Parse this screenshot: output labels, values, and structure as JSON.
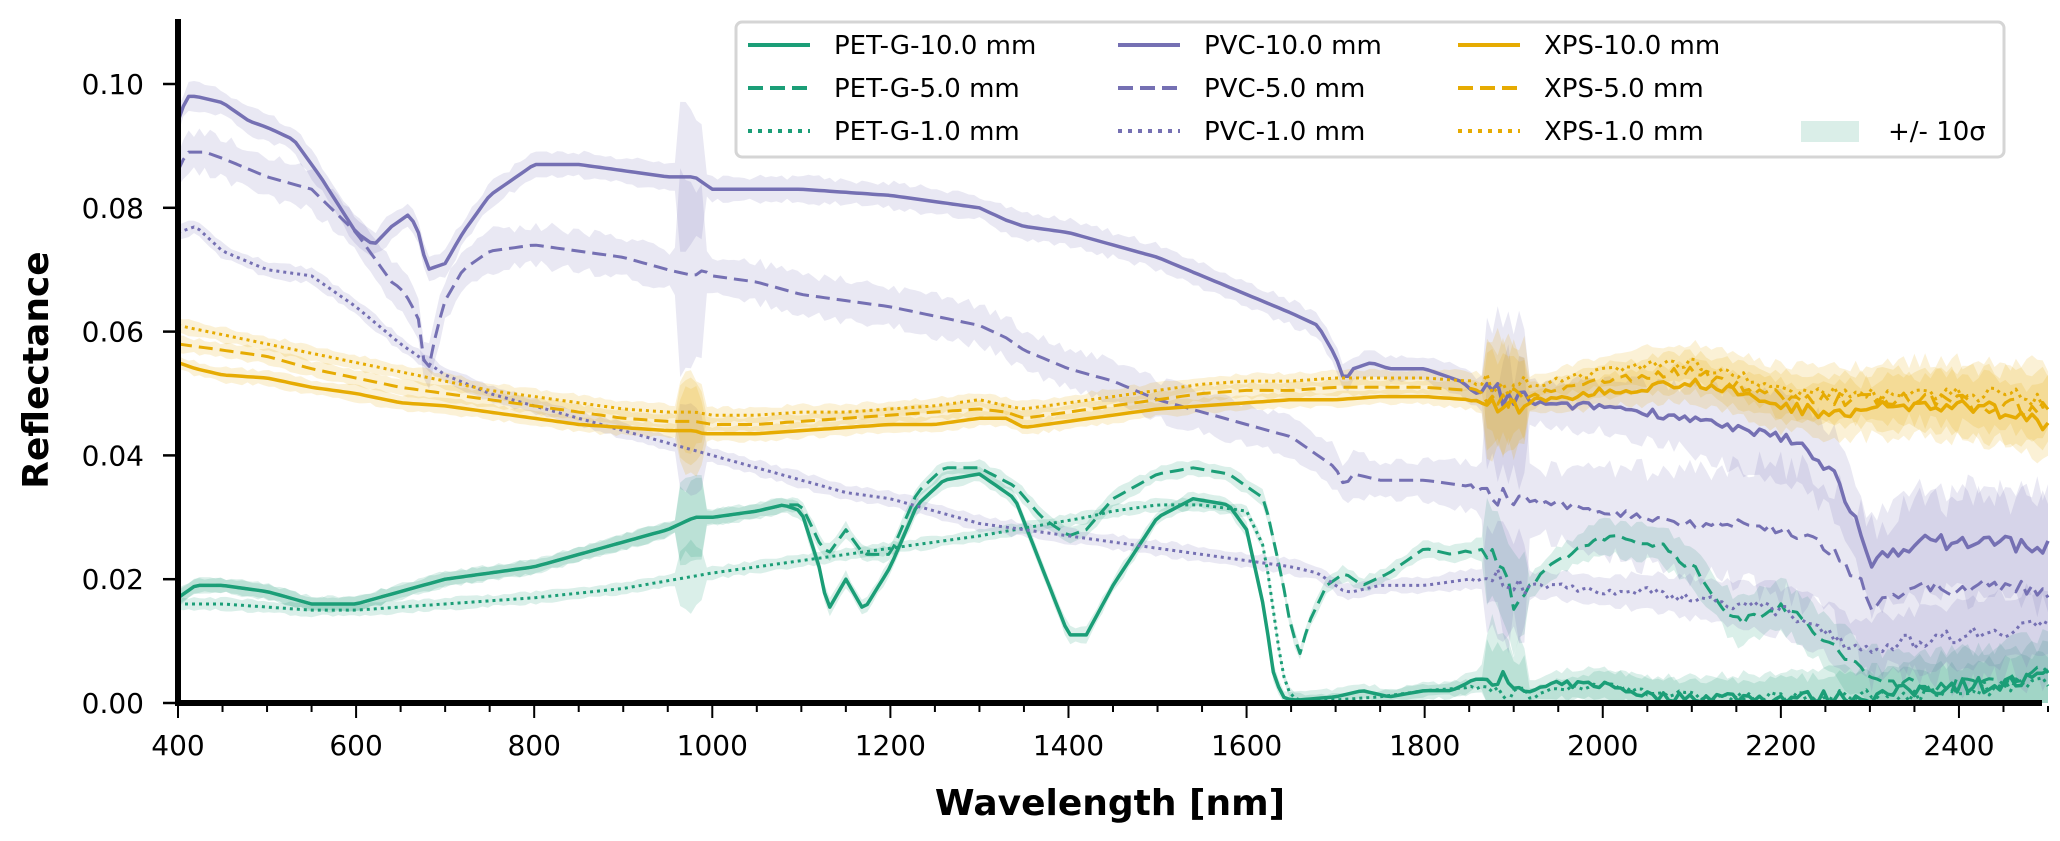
{
  "chart_data": {
    "type": "line",
    "title": "",
    "xlabel": "Wavelength [nm]",
    "ylabel": "Reflectance",
    "xlim": [
      400,
      2500
    ],
    "ylim": [
      0.0,
      0.11
    ],
    "xticks": [
      400,
      600,
      800,
      1000,
      1200,
      1400,
      1600,
      1800,
      2000,
      2200,
      2400
    ],
    "xtick_labels": [
      "400",
      "600",
      "800",
      "1000",
      "1200",
      "1400",
      "1600",
      "1800",
      "2000",
      "2200",
      "2400"
    ],
    "yticks": [
      0.0,
      0.02,
      0.04,
      0.06,
      0.08,
      0.1
    ],
    "ytick_labels": [
      "0.00",
      "0.02",
      "0.04",
      "0.06",
      "0.08",
      "0.10"
    ],
    "grid": false,
    "legend_position": "top-right",
    "legend_columns": 4,
    "band_label": "+/- 10σ",
    "colors": {
      "PET-G": "#1b9e77",
      "PVC": "#7570b3",
      "XPS": "#e6ab02",
      "band_legend": "#daeee8"
    },
    "series": [
      {
        "name": "PET-G-10.0 mm",
        "material": "PET-G",
        "style": "solid",
        "band": 0.0015,
        "x": [
          400,
          420,
          450,
          500,
          550,
          600,
          650,
          700,
          750,
          800,
          850,
          900,
          950,
          980,
          1000,
          1050,
          1080,
          1100,
          1120,
          1130,
          1150,
          1170,
          1200,
          1230,
          1260,
          1300,
          1340,
          1370,
          1400,
          1420,
          1450,
          1500,
          1540,
          1580,
          1600,
          1620,
          1630,
          1640,
          1650,
          1660,
          1700,
          1730,
          1760,
          1800,
          1830,
          1860,
          1880,
          1900,
          1920,
          1950,
          2000,
          2030,
          2060,
          2100,
          2120,
          2140,
          2160,
          2180,
          2200,
          2220,
          2250,
          2300,
          2350,
          2400,
          2450,
          2500
        ],
        "y": [
          0.017,
          0.019,
          0.019,
          0.018,
          0.016,
          0.016,
          0.018,
          0.02,
          0.021,
          0.022,
          0.024,
          0.026,
          0.028,
          0.03,
          0.03,
          0.031,
          0.032,
          0.031,
          0.022,
          0.015,
          0.02,
          0.015,
          0.022,
          0.032,
          0.036,
          0.037,
          0.033,
          0.022,
          0.011,
          0.011,
          0.019,
          0.03,
          0.033,
          0.032,
          0.028,
          0.015,
          0.005,
          0.001,
          0.0005,
          0.0005,
          0.001,
          0.002,
          0.001,
          0.002,
          0.002,
          0.004,
          0.005,
          0.001,
          0.002,
          0.003,
          0.003,
          0.002,
          0.001,
          0.001,
          0.001,
          0.001,
          0.001,
          0.0008,
          0.0008,
          0.001,
          0.001,
          0.001,
          0.002,
          0.003,
          0.003,
          0.004
        ]
      },
      {
        "name": "PET-G-5.0 mm",
        "material": "PET-G",
        "style": "dashed",
        "band": 0.0015,
        "x": [
          400,
          420,
          450,
          500,
          550,
          600,
          650,
          700,
          750,
          800,
          850,
          900,
          950,
          980,
          1000,
          1050,
          1080,
          1100,
          1120,
          1130,
          1150,
          1170,
          1200,
          1230,
          1260,
          1300,
          1340,
          1370,
          1400,
          1420,
          1450,
          1500,
          1540,
          1580,
          1600,
          1620,
          1640,
          1650,
          1660,
          1670,
          1690,
          1710,
          1730,
          1760,
          1800,
          1830,
          1860,
          1880,
          1900,
          1920,
          1950,
          2000,
          2030,
          2060,
          2100,
          2150,
          2200,
          2250,
          2300,
          2350,
          2400,
          2450,
          2500
        ],
        "y": [
          0.017,
          0.019,
          0.019,
          0.018,
          0.016,
          0.016,
          0.018,
          0.02,
          0.021,
          0.022,
          0.024,
          0.026,
          0.028,
          0.03,
          0.03,
          0.031,
          0.032,
          0.032,
          0.026,
          0.024,
          0.028,
          0.024,
          0.024,
          0.034,
          0.038,
          0.038,
          0.035,
          0.03,
          0.027,
          0.028,
          0.033,
          0.037,
          0.038,
          0.037,
          0.035,
          0.033,
          0.02,
          0.012,
          0.008,
          0.013,
          0.019,
          0.021,
          0.019,
          0.021,
          0.025,
          0.024,
          0.025,
          0.024,
          0.016,
          0.019,
          0.023,
          0.027,
          0.026,
          0.026,
          0.022,
          0.013,
          0.016,
          0.01,
          0.004,
          0.003,
          0.003,
          0.004,
          0.005
        ]
      },
      {
        "name": "PET-G-1.0 mm",
        "material": "PET-G",
        "style": "dotted",
        "band": 0.0012,
        "x": [
          400,
          450,
          500,
          550,
          600,
          700,
          800,
          900,
          980,
          1000,
          1100,
          1200,
          1300,
          1380,
          1420,
          1450,
          1500,
          1550,
          1600,
          1620,
          1630,
          1640,
          1650,
          1660,
          1700,
          1750,
          1800,
          1850,
          1880,
          1900,
          1950,
          2000,
          2050,
          2100,
          2150,
          2200,
          2250,
          2300,
          2400,
          2500
        ],
        "y": [
          0.016,
          0.016,
          0.0155,
          0.015,
          0.015,
          0.016,
          0.017,
          0.0185,
          0.0205,
          0.021,
          0.023,
          0.025,
          0.027,
          0.029,
          0.03,
          0.031,
          0.032,
          0.032,
          0.031,
          0.025,
          0.015,
          0.005,
          0.001,
          0.0005,
          0.0005,
          0.001,
          0.002,
          0.0025,
          0.003,
          0.0005,
          0.002,
          0.003,
          0.002,
          0.001,
          0.001,
          0.0008,
          0.001,
          0.001,
          0.002,
          0.003
        ]
      },
      {
        "name": "PVC-10.0 mm",
        "material": "PVC",
        "style": "solid",
        "band": 0.0025,
        "x": [
          400,
          410,
          420,
          450,
          480,
          500,
          530,
          560,
          600,
          620,
          640,
          660,
          670,
          680,
          700,
          720,
          750,
          780,
          800,
          850,
          900,
          950,
          980,
          990,
          1000,
          1050,
          1100,
          1200,
          1300,
          1330,
          1350,
          1400,
          1450,
          1500,
          1550,
          1600,
          1650,
          1680,
          1700,
          1710,
          1720,
          1740,
          1760,
          1800,
          1840,
          1860,
          1880,
          1900,
          1950,
          2000,
          2050,
          2100,
          2150,
          2200,
          2230,
          2260,
          2280,
          2300,
          2320,
          2350,
          2400,
          2450,
          2500
        ],
        "y": [
          0.094,
          0.098,
          0.098,
          0.097,
          0.094,
          0.093,
          0.091,
          0.085,
          0.076,
          0.074,
          0.077,
          0.079,
          0.076,
          0.07,
          0.071,
          0.076,
          0.082,
          0.085,
          0.087,
          0.087,
          0.086,
          0.085,
          0.085,
          0.084,
          0.083,
          0.083,
          0.083,
          0.082,
          0.08,
          0.078,
          0.077,
          0.076,
          0.074,
          0.072,
          0.069,
          0.066,
          0.063,
          0.061,
          0.056,
          0.052,
          0.054,
          0.055,
          0.054,
          0.054,
          0.052,
          0.05,
          0.05,
          0.049,
          0.048,
          0.048,
          0.047,
          0.046,
          0.044,
          0.043,
          0.041,
          0.037,
          0.031,
          0.022,
          0.024,
          0.026,
          0.026,
          0.026,
          0.025
        ]
      },
      {
        "name": "PVC-5.0 mm",
        "material": "PVC",
        "style": "dashed",
        "band": 0.004,
        "x": [
          400,
          410,
          430,
          450,
          500,
          550,
          600,
          620,
          640,
          650,
          660,
          670,
          675,
          680,
          690,
          700,
          720,
          750,
          800,
          850,
          900,
          950,
          980,
          990,
          1000,
          1050,
          1100,
          1150,
          1200,
          1300,
          1330,
          1350,
          1400,
          1450,
          1500,
          1550,
          1600,
          1650,
          1700,
          1710,
          1720,
          1750,
          1800,
          1850,
          1870,
          1890,
          1900,
          1950,
          2000,
          2050,
          2100,
          2150,
          2200,
          2230,
          2260,
          2290,
          2300,
          2320,
          2350,
          2400,
          2450,
          2500
        ],
        "y": [
          0.086,
          0.089,
          0.089,
          0.088,
          0.085,
          0.083,
          0.076,
          0.072,
          0.068,
          0.067,
          0.065,
          0.062,
          0.056,
          0.053,
          0.06,
          0.065,
          0.07,
          0.073,
          0.074,
          0.073,
          0.072,
          0.07,
          0.069,
          0.07,
          0.069,
          0.068,
          0.066,
          0.065,
          0.064,
          0.061,
          0.059,
          0.057,
          0.054,
          0.052,
          0.049,
          0.047,
          0.045,
          0.043,
          0.038,
          0.035,
          0.037,
          0.036,
          0.036,
          0.035,
          0.034,
          0.033,
          0.033,
          0.032,
          0.031,
          0.03,
          0.029,
          0.029,
          0.028,
          0.027,
          0.024,
          0.019,
          0.016,
          0.017,
          0.019,
          0.018,
          0.019,
          0.018
        ]
      },
      {
        "name": "PVC-1.0 mm",
        "material": "PVC",
        "style": "dotted",
        "band": 0.0015,
        "x": [
          400,
          420,
          450,
          500,
          550,
          600,
          650,
          700,
          750,
          800,
          850,
          900,
          950,
          1000,
          1050,
          1100,
          1150,
          1200,
          1250,
          1300,
          1350,
          1400,
          1450,
          1500,
          1550,
          1600,
          1650,
          1680,
          1700,
          1710,
          1720,
          1750,
          1800,
          1850,
          1880,
          1900,
          1950,
          2000,
          2050,
          2100,
          2150,
          2200,
          2250,
          2280,
          2300,
          2350,
          2400,
          2450,
          2500
        ],
        "y": [
          0.076,
          0.077,
          0.073,
          0.07,
          0.069,
          0.064,
          0.058,
          0.053,
          0.05,
          0.048,
          0.046,
          0.044,
          0.042,
          0.04,
          0.038,
          0.036,
          0.034,
          0.033,
          0.031,
          0.029,
          0.028,
          0.027,
          0.026,
          0.025,
          0.024,
          0.023,
          0.022,
          0.021,
          0.019,
          0.018,
          0.018,
          0.019,
          0.019,
          0.02,
          0.02,
          0.019,
          0.019,
          0.018,
          0.018,
          0.017,
          0.016,
          0.015,
          0.012,
          0.009,
          0.009,
          0.01,
          0.011,
          0.012,
          0.013
        ]
      },
      {
        "name": "XPS-10.0 mm",
        "material": "XPS",
        "style": "solid",
        "band": 0.0015,
        "x": [
          400,
          420,
          450,
          500,
          550,
          600,
          650,
          700,
          750,
          800,
          850,
          900,
          950,
          980,
          990,
          1000,
          1050,
          1100,
          1150,
          1200,
          1250,
          1300,
          1330,
          1350,
          1400,
          1450,
          1500,
          1550,
          1600,
          1650,
          1700,
          1750,
          1800,
          1850,
          1870,
          1900,
          1950,
          2000,
          2050,
          2100,
          2150,
          2200,
          2250,
          2300,
          2350,
          2400,
          2450,
          2490,
          2500
        ],
        "y": [
          0.055,
          0.054,
          0.053,
          0.0525,
          0.051,
          0.05,
          0.0485,
          0.048,
          0.047,
          0.046,
          0.045,
          0.0445,
          0.044,
          0.044,
          0.0435,
          0.0435,
          0.0435,
          0.044,
          0.0445,
          0.045,
          0.045,
          0.046,
          0.046,
          0.0445,
          0.0455,
          0.0465,
          0.0475,
          0.048,
          0.0485,
          0.049,
          0.049,
          0.0495,
          0.0495,
          0.049,
          0.048,
          0.0485,
          0.049,
          0.0505,
          0.051,
          0.052,
          0.05,
          0.048,
          0.047,
          0.0475,
          0.048,
          0.048,
          0.047,
          0.045,
          0.0465
        ]
      },
      {
        "name": "XPS-5.0 mm",
        "material": "XPS",
        "style": "dashed",
        "band": 0.0015,
        "x": [
          400,
          450,
          500,
          550,
          600,
          650,
          700,
          750,
          800,
          850,
          900,
          950,
          980,
          1000,
          1050,
          1100,
          1150,
          1200,
          1250,
          1300,
          1330,
          1350,
          1400,
          1450,
          1500,
          1550,
          1600,
          1650,
          1700,
          1750,
          1800,
          1850,
          1880,
          1900,
          1950,
          2000,
          2050,
          2100,
          2150,
          2200,
          2250,
          2300,
          2350,
          2400,
          2450,
          2500
        ],
        "y": [
          0.058,
          0.057,
          0.056,
          0.054,
          0.0525,
          0.051,
          0.05,
          0.049,
          0.048,
          0.047,
          0.046,
          0.0455,
          0.0455,
          0.045,
          0.045,
          0.0455,
          0.046,
          0.0465,
          0.047,
          0.0475,
          0.047,
          0.046,
          0.047,
          0.048,
          0.049,
          0.05,
          0.0505,
          0.0505,
          0.051,
          0.051,
          0.051,
          0.0505,
          0.0495,
          0.049,
          0.0505,
          0.052,
          0.053,
          0.0535,
          0.0515,
          0.0495,
          0.049,
          0.049,
          0.049,
          0.0485,
          0.048,
          0.0475
        ]
      },
      {
        "name": "XPS-1.0 mm",
        "material": "XPS",
        "style": "dotted",
        "band": 0.0015,
        "x": [
          400,
          450,
          500,
          550,
          600,
          650,
          700,
          750,
          800,
          850,
          900,
          950,
          980,
          1000,
          1050,
          1100,
          1150,
          1200,
          1250,
          1300,
          1330,
          1350,
          1400,
          1450,
          1500,
          1550,
          1600,
          1650,
          1700,
          1750,
          1800,
          1850,
          1880,
          1900,
          1950,
          2000,
          2050,
          2100,
          2150,
          2200,
          2250,
          2300,
          2350,
          2400,
          2450,
          2500
        ],
        "y": [
          0.061,
          0.0595,
          0.058,
          0.0565,
          0.055,
          0.0535,
          0.052,
          0.0505,
          0.0495,
          0.0485,
          0.0475,
          0.047,
          0.047,
          0.0465,
          0.0465,
          0.047,
          0.047,
          0.0475,
          0.048,
          0.049,
          0.048,
          0.0475,
          0.0485,
          0.0495,
          0.0505,
          0.0515,
          0.052,
          0.052,
          0.0525,
          0.0525,
          0.0525,
          0.052,
          0.051,
          0.0505,
          0.052,
          0.0535,
          0.0545,
          0.055,
          0.053,
          0.0505,
          0.05,
          0.05,
          0.0505,
          0.05,
          0.0495,
          0.049
        ]
      }
    ]
  },
  "legend": {
    "entries": [
      {
        "label": "PET-G-10.0 mm",
        "material": "PET-G",
        "style": "solid"
      },
      {
        "label": "PET-G-5.0 mm",
        "material": "PET-G",
        "style": "dashed"
      },
      {
        "label": "PET-G-1.0 mm",
        "material": "PET-G",
        "style": "dotted"
      },
      {
        "label": "PVC-10.0 mm",
        "material": "PVC",
        "style": "solid"
      },
      {
        "label": "PVC-5.0 mm",
        "material": "PVC",
        "style": "dashed"
      },
      {
        "label": "PVC-1.0 mm",
        "material": "PVC",
        "style": "dotted"
      },
      {
        "label": "XPS-10.0 mm",
        "material": "XPS",
        "style": "solid"
      },
      {
        "label": "XPS-5.0 mm",
        "material": "XPS",
        "style": "dashed"
      },
      {
        "label": "XPS-1.0 mm",
        "material": "XPS",
        "style": "dotted"
      },
      {
        "label": "+/- 10σ",
        "material": "band",
        "style": "patch"
      }
    ]
  }
}
